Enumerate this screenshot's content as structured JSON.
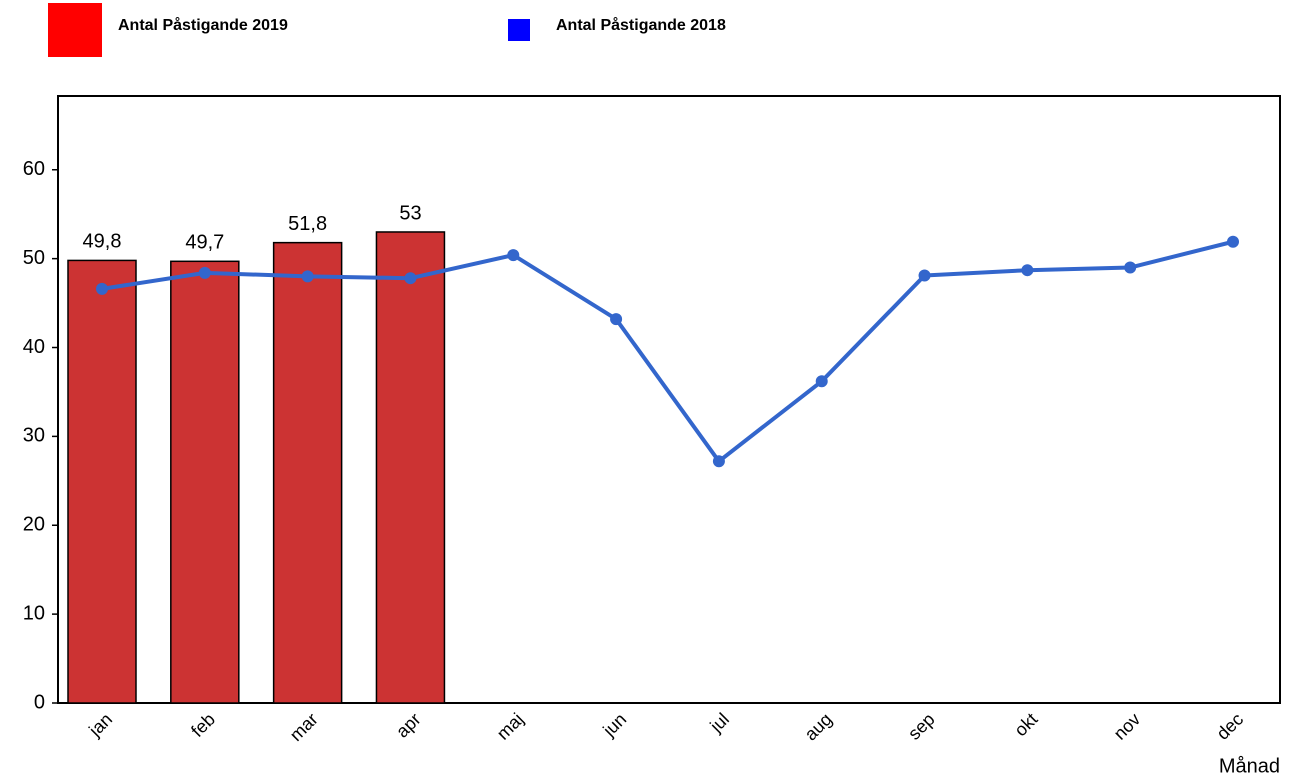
{
  "chart_data": {
    "type": "combo",
    "categories": [
      "jan",
      "feb",
      "mar",
      "apr",
      "maj",
      "jun",
      "jul",
      "aug",
      "sep",
      "okt",
      "nov",
      "dec"
    ],
    "x_label": "Månad",
    "series": [
      {
        "name": "Antal Påstigande 2019",
        "type": "bar",
        "color": "#cc3333",
        "legend_color": "#ff0000",
        "values": [
          49.8,
          49.7,
          51.8,
          53,
          null,
          null,
          null,
          null,
          null,
          null,
          null,
          null
        ],
        "value_labels": [
          "49,8",
          "49,7",
          "51,8",
          "53",
          null,
          null,
          null,
          null,
          null,
          null,
          null,
          null
        ]
      },
      {
        "name": "Antal Påstigande 2018",
        "type": "line",
        "color": "#3366cc",
        "legend_color": "#0000ff",
        "values": [
          46.6,
          48.4,
          48.0,
          47.8,
          50.4,
          43.2,
          27.2,
          36.2,
          48.1,
          48.7,
          49.0,
          51.9
        ]
      }
    ],
    "ylim": [
      0,
      68.3
    ],
    "yticks": [
      0,
      10,
      20,
      30,
      40,
      50,
      60
    ],
    "grid": false
  }
}
